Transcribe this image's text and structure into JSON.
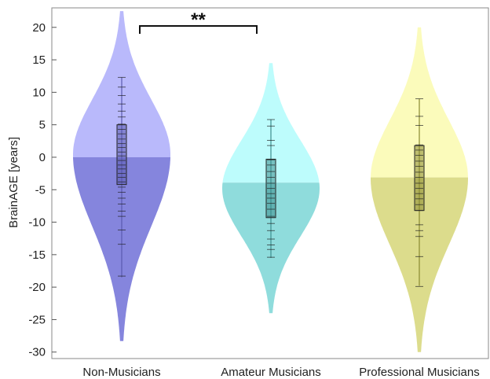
{
  "chart_data": {
    "type": "violin",
    "ylabel": "BrainAGE [years]",
    "ylim": [
      -31,
      23
    ],
    "yticks": [
      20,
      15,
      10,
      5,
      0,
      -5,
      -10,
      -15,
      -20,
      -25,
      -30
    ],
    "ytick_labels": [
      "20",
      "15",
      "10",
      "5",
      "0",
      "-5",
      "-10",
      "-15",
      "-20",
      "-25",
      "-30"
    ],
    "categories": [
      "Non-Musicians",
      "Amateur Musicians",
      "Professional Musicians"
    ],
    "grid": false,
    "series": [
      {
        "color_light": "#b9b9fb",
        "color_dark": "#8585dd",
        "box_color": "#5a5ab0",
        "mean": 0,
        "range": [
          -28.3,
          22.5
        ],
        "q1": -4.2,
        "q3": 5.0,
        "median": 0.5,
        "whisker": [
          -18.5,
          12.3
        ],
        "points": [
          12.3,
          10.8,
          9.5,
          8.2,
          7.1,
          6.2,
          5.1,
          4.3,
          3.6,
          2.8,
          2.1,
          1.5,
          0.8,
          0.2,
          -0.5,
          -1.2,
          -1.8,
          -2.5,
          -3.1,
          -3.8,
          -4.6,
          -5.4,
          -6.3,
          -7.2,
          -8.3,
          -9.1,
          -11.2,
          -13.4,
          -18.3
        ]
      },
      {
        "color_light": "#bdfcfc",
        "color_dark": "#8fdcdc",
        "box_color": "#3d8e8e",
        "mean": -3.9,
        "range": [
          -24.0,
          14.5
        ],
        "q1": -9.3,
        "q3": -0.3,
        "median": -4.4,
        "whisker": [
          -15.5,
          5.8
        ],
        "points": [
          5.8,
          4.8,
          2.6,
          1.8,
          -0.4,
          -1.2,
          -2.2,
          -3.1,
          -4.0,
          -4.8,
          -5.6,
          -6.3,
          -7.1,
          -8.0,
          -9.1,
          -10.2,
          -11.3,
          -12.6,
          -13.5,
          -14.2,
          -15.4
        ]
      },
      {
        "color_light": "#fbfbbb",
        "color_dark": "#dcdc8c",
        "box_color": "#8a8a30",
        "mean": -3.1,
        "range": [
          -30.0,
          20.0
        ],
        "q1": -8.2,
        "q3": 1.8,
        "median": -3.5,
        "whisker": [
          -19.8,
          9.0
        ],
        "points": [
          9.0,
          6.3,
          4.9,
          1.9,
          1.1,
          0.3,
          -0.6,
          -1.4,
          -2.3,
          -3.1,
          -4.0,
          -4.8,
          -5.6,
          -6.4,
          -7.3,
          -8.2,
          -10.4,
          -11.3,
          -12.2,
          -15.3,
          -19.9
        ]
      }
    ],
    "significance": {
      "from": 0,
      "to": 1,
      "label": "**"
    }
  }
}
